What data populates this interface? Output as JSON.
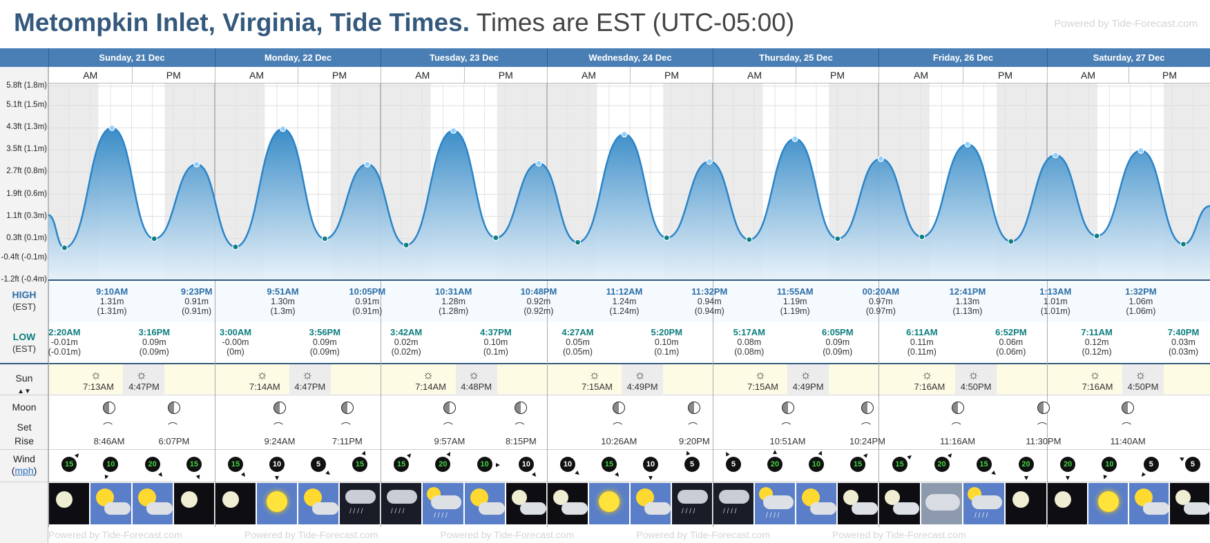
{
  "header": {
    "title_strong": "Metompkin Inlet, Virginia, Tide Times.",
    "title_light": "Times are EST (UTC-05:00)",
    "powered_by": "Powered by Tide-Forecast.com"
  },
  "axis": {
    "labels": [
      {
        "text": "5.8ft (1.8m)",
        "ft": 5.8
      },
      {
        "text": "5.1ft (1.5m)",
        "ft": 5.1
      },
      {
        "text": "4.3ft (1.3m)",
        "ft": 4.3
      },
      {
        "text": "3.5ft (1.1m)",
        "ft": 3.5
      },
      {
        "text": "2.7ft (0.8m)",
        "ft": 2.7
      },
      {
        "text": "1.9ft (0.6m)",
        "ft": 1.9
      },
      {
        "text": "1.1ft (0.3m)",
        "ft": 1.1
      },
      {
        "text": "0.3ft (0.1m)",
        "ft": 0.3
      },
      {
        "text": "-0.4ft (-0.1m)",
        "ft": -0.4
      },
      {
        "text": "-1.2ft (-0.4m)",
        "ft": -1.2
      }
    ]
  },
  "row_labels": {
    "high": "HIGH",
    "high_sub": "(EST)",
    "low": "LOW",
    "low_sub": "(EST)",
    "sun": "Sun",
    "moon": "Moon",
    "set": "Set",
    "rise": "Rise",
    "wind": "Wind",
    "wind_unit": "mph"
  },
  "days": [
    {
      "name": "Sunday, 21 Dec"
    },
    {
      "name": "Monday, 22 Dec"
    },
    {
      "name": "Tuesday, 23 Dec"
    },
    {
      "name": "Wednesday, 24 Dec"
    },
    {
      "name": "Thursday, 25 Dec"
    },
    {
      "name": "Friday, 26 Dec"
    },
    {
      "name": "Saturday, 27 Dec"
    }
  ],
  "ampm": {
    "am": "AM",
    "pm": "PM"
  },
  "chart_data": {
    "type": "area",
    "ylabel": "",
    "xlabel": "",
    "y_unit": "m",
    "series": [
      {
        "points": [
          {
            "day": "Sunday, 21 Dec",
            "time": "2:20AM",
            "type": "low",
            "m": -0.01
          },
          {
            "day": "Sunday, 21 Dec",
            "time": "9:10AM",
            "type": "high",
            "m": 1.31
          },
          {
            "day": "Sunday, 21 Dec",
            "time": "3:16PM",
            "type": "low",
            "m": 0.09
          },
          {
            "day": "Sunday, 21 Dec",
            "time": "9:23PM",
            "type": "high",
            "m": 0.91
          },
          {
            "day": "Monday, 22 Dec",
            "time": "3:00AM",
            "type": "low",
            "m": 0.0
          },
          {
            "day": "Monday, 22 Dec",
            "time": "9:51AM",
            "type": "high",
            "m": 1.3
          },
          {
            "day": "Monday, 22 Dec",
            "time": "3:56PM",
            "type": "low",
            "m": 0.09
          },
          {
            "day": "Monday, 22 Dec",
            "time": "10:05PM",
            "type": "high",
            "m": 0.91
          },
          {
            "day": "Tuesday, 23 Dec",
            "time": "3:42AM",
            "type": "low",
            "m": 0.02
          },
          {
            "day": "Tuesday, 23 Dec",
            "time": "10:31AM",
            "type": "high",
            "m": 1.28
          },
          {
            "day": "Tuesday, 23 Dec",
            "time": "4:37PM",
            "type": "low",
            "m": 0.1
          },
          {
            "day": "Tuesday, 23 Dec",
            "time": "10:48PM",
            "type": "high",
            "m": 0.92
          },
          {
            "day": "Wednesday, 24 Dec",
            "time": "4:27AM",
            "type": "low",
            "m": 0.05
          },
          {
            "day": "Wednesday, 24 Dec",
            "time": "11:12AM",
            "type": "high",
            "m": 1.24
          },
          {
            "day": "Wednesday, 24 Dec",
            "time": "5:20PM",
            "type": "low",
            "m": 0.1
          },
          {
            "day": "Wednesday, 24 Dec",
            "time": "11:32PM",
            "type": "high",
            "m": 0.94
          },
          {
            "day": "Thursday, 25 Dec",
            "time": "5:17AM",
            "type": "low",
            "m": 0.08
          },
          {
            "day": "Thursday, 25 Dec",
            "time": "11:55AM",
            "type": "high",
            "m": 1.19
          },
          {
            "day": "Thursday, 25 Dec",
            "time": "6:05PM",
            "type": "low",
            "m": 0.09
          },
          {
            "day": "Friday, 26 Dec",
            "time": "00:20AM",
            "type": "high",
            "m": 0.97
          },
          {
            "day": "Friday, 26 Dec",
            "time": "6:11AM",
            "type": "low",
            "m": 0.11
          },
          {
            "day": "Friday, 26 Dec",
            "time": "12:41PM",
            "type": "high",
            "m": 1.13
          },
          {
            "day": "Friday, 26 Dec",
            "time": "6:52PM",
            "type": "low",
            "m": 0.06
          },
          {
            "day": "Saturday, 27 Dec",
            "time": "1:13AM",
            "type": "high",
            "m": 1.01
          },
          {
            "day": "Saturday, 27 Dec",
            "time": "7:11AM",
            "type": "low",
            "m": 0.12
          },
          {
            "day": "Saturday, 27 Dec",
            "time": "1:32PM",
            "type": "high",
            "m": 1.06
          },
          {
            "day": "Saturday, 27 Dec",
            "time": "7:40PM",
            "type": "low",
            "m": 0.03
          }
        ]
      }
    ],
    "colors": {
      "line": "#2a84c8",
      "fill_top": "#2f86c4",
      "fill_bottom": "#e6f1fa",
      "night": "#ebebeb",
      "day": "#ffffff"
    }
  },
  "highs": [
    {
      "day": 0,
      "time": "9:10AM",
      "m": "1.31m",
      "m2": "(1.31m)",
      "hour": 9.17
    },
    {
      "day": 0,
      "time": "9:23PM",
      "m": "0.91m",
      "m2": "(0.91m)",
      "hour": 21.38
    },
    {
      "day": 1,
      "time": "9:51AM",
      "m": "1.30m",
      "m2": "(1.3m)",
      "hour": 9.85
    },
    {
      "day": 1,
      "time": "10:05PM",
      "m": "0.91m",
      "m2": "(0.91m)",
      "hour": 22.08
    },
    {
      "day": 2,
      "time": "10:31AM",
      "m": "1.28m",
      "m2": "(1.28m)",
      "hour": 10.52
    },
    {
      "day": 2,
      "time": "10:48PM",
      "m": "0.92m",
      "m2": "(0.92m)",
      "hour": 22.8
    },
    {
      "day": 3,
      "time": "11:12AM",
      "m": "1.24m",
      "m2": "(1.24m)",
      "hour": 11.2
    },
    {
      "day": 3,
      "time": "11:32PM",
      "m": "0.94m",
      "m2": "(0.94m)",
      "hour": 23.53
    },
    {
      "day": 4,
      "time": "11:55AM",
      "m": "1.19m",
      "m2": "(1.19m)",
      "hour": 11.92
    },
    {
      "day": 5,
      "time": "00:20AM",
      "m": "0.97m",
      "m2": "(0.97m)",
      "hour": 0.33
    },
    {
      "day": 5,
      "time": "12:41PM",
      "m": "1.13m",
      "m2": "(1.13m)",
      "hour": 12.68
    },
    {
      "day": 6,
      "time": "1:13AM",
      "m": "1.01m",
      "m2": "(1.01m)",
      "hour": 1.22
    },
    {
      "day": 6,
      "time": "1:32PM",
      "m": "1.06m",
      "m2": "(1.06m)",
      "hour": 13.53
    }
  ],
  "lows": [
    {
      "day": 0,
      "time": "2:20AM",
      "m": "-0.01m",
      "m2": "(-0.01m)",
      "hour": 2.33
    },
    {
      "day": 0,
      "time": "3:16PM",
      "m": "0.09m",
      "m2": "(0.09m)",
      "hour": 15.27
    },
    {
      "day": 1,
      "time": "3:00AM",
      "m": "-0.00m",
      "m2": "(0m)",
      "hour": 3.0
    },
    {
      "day": 1,
      "time": "3:56PM",
      "m": "0.09m",
      "m2": "(0.09m)",
      "hour": 15.93
    },
    {
      "day": 2,
      "time": "3:42AM",
      "m": "0.02m",
      "m2": "(0.02m)",
      "hour": 3.7
    },
    {
      "day": 2,
      "time": "4:37PM",
      "m": "0.10m",
      "m2": "(0.1m)",
      "hour": 16.62
    },
    {
      "day": 3,
      "time": "4:27AM",
      "m": "0.05m",
      "m2": "(0.05m)",
      "hour": 4.45
    },
    {
      "day": 3,
      "time": "5:20PM",
      "m": "0.10m",
      "m2": "(0.1m)",
      "hour": 17.33
    },
    {
      "day": 4,
      "time": "5:17AM",
      "m": "0.08m",
      "m2": "(0.08m)",
      "hour": 5.28
    },
    {
      "day": 4,
      "time": "6:05PM",
      "m": "0.09m",
      "m2": "(0.09m)",
      "hour": 18.08
    },
    {
      "day": 5,
      "time": "6:11AM",
      "m": "0.11m",
      "m2": "(0.11m)",
      "hour": 6.18
    },
    {
      "day": 5,
      "time": "6:52PM",
      "m": "0.06m",
      "m2": "(0.06m)",
      "hour": 18.87
    },
    {
      "day": 6,
      "time": "7:11AM",
      "m": "0.12m",
      "m2": "(0.12m)",
      "hour": 7.18
    },
    {
      "day": 6,
      "time": "7:40PM",
      "m": "0.03m",
      "m2": "(0.03m)",
      "hour": 19.67
    }
  ],
  "sun": [
    {
      "rise": "7:13AM",
      "set": "4:47PM",
      "rise_h": 7.22,
      "set_h": 16.78
    },
    {
      "rise": "7:14AM",
      "set": "4:47PM",
      "rise_h": 7.23,
      "set_h": 16.78
    },
    {
      "rise": "7:14AM",
      "set": "4:48PM",
      "rise_h": 7.23,
      "set_h": 16.8
    },
    {
      "rise": "7:15AM",
      "set": "4:49PM",
      "rise_h": 7.25,
      "set_h": 16.82
    },
    {
      "rise": "7:15AM",
      "set": "4:49PM",
      "rise_h": 7.25,
      "set_h": 16.82
    },
    {
      "rise": "7:16AM",
      "set": "4:50PM",
      "rise_h": 7.27,
      "set_h": 16.83
    },
    {
      "rise": "7:16AM",
      "set": "4:50PM",
      "rise_h": 7.27,
      "set_h": 16.83
    }
  ],
  "moon": [
    {
      "day": 0,
      "time": "8:46AM",
      "hour": 8.77
    },
    {
      "day": 0,
      "time": "6:07PM",
      "hour": 18.12
    },
    {
      "day": 1,
      "time": "9:24AM",
      "hour": 9.4
    },
    {
      "day": 1,
      "time": "7:11PM",
      "hour": 19.18
    },
    {
      "day": 2,
      "time": "9:57AM",
      "hour": 9.95
    },
    {
      "day": 2,
      "time": "8:15PM",
      "hour": 20.25
    },
    {
      "day": 3,
      "time": "10:26AM",
      "hour": 10.43
    },
    {
      "day": 3,
      "time": "9:20PM",
      "hour": 21.33
    },
    {
      "day": 4,
      "time": "10:51AM",
      "hour": 10.85
    },
    {
      "day": 4,
      "time": "10:24PM",
      "hour": 22.4
    },
    {
      "day": 5,
      "time": "11:16AM",
      "hour": 11.27
    },
    {
      "day": 5,
      "time": "11:30PM",
      "hour": 23.5
    },
    {
      "day": 6,
      "time": "11:40AM",
      "hour": 11.67
    }
  ],
  "wind": [
    {
      "speed": "15",
      "green": true,
      "dir": 40
    },
    {
      "speed": "10",
      "green": true,
      "dir": 200
    },
    {
      "speed": "20",
      "green": true,
      "dir": 140
    },
    {
      "speed": "15",
      "green": true,
      "dir": 160
    },
    {
      "speed": "15",
      "green": true,
      "dir": 140
    },
    {
      "speed": "10",
      "green": false,
      "dir": 180
    },
    {
      "speed": "5",
      "green": false,
      "dir": 130
    },
    {
      "speed": "15",
      "green": true,
      "dir": 20
    },
    {
      "speed": "15",
      "green": true,
      "dir": 40
    },
    {
      "speed": "20",
      "green": true,
      "dir": 30
    },
    {
      "speed": "10",
      "green": true,
      "dir": 90
    },
    {
      "speed": "10",
      "green": false,
      "dir": 140
    },
    {
      "speed": "10",
      "green": false,
      "dir": 130
    },
    {
      "speed": "15",
      "green": true,
      "dir": 140
    },
    {
      "speed": "10",
      "green": false,
      "dir": 180
    },
    {
      "speed": "5",
      "green": false,
      "dir": 340
    },
    {
      "speed": "5",
      "green": false,
      "dir": 330
    },
    {
      "speed": "20",
      "green": true,
      "dir": 0
    },
    {
      "speed": "10",
      "green": true,
      "dir": 20
    },
    {
      "speed": "15",
      "green": true,
      "dir": 40
    },
    {
      "speed": "15",
      "green": true,
      "dir": 50
    },
    {
      "speed": "20",
      "green": true,
      "dir": 40
    },
    {
      "speed": "15",
      "green": true,
      "dir": 130
    },
    {
      "speed": "20",
      "green": true,
      "dir": 180
    },
    {
      "speed": "20",
      "green": true,
      "dir": 180
    },
    {
      "speed": "10",
      "green": true,
      "dir": 200
    },
    {
      "speed": "5",
      "green": false,
      "dir": 220
    },
    {
      "speed": "5",
      "green": false,
      "dir": 300
    }
  ],
  "weather": [
    "clear-night-icon",
    "partly-cloudy-day-icon",
    "partly-cloudy-day-icon",
    "clear-night-icon",
    "clear-night-icon",
    "sunny-icon",
    "partly-cloudy-day-icon",
    "rain-night-icon",
    "rain-night-icon",
    "rain-day-icon",
    "partly-cloudy-day-icon",
    "partly-cloudy-night-icon",
    "partly-cloudy-night-icon",
    "sunny-icon",
    "partly-cloudy-day-icon",
    "rain-night-icon",
    "rain-night-icon",
    "rain-day-icon",
    "partly-cloudy-day-icon",
    "partly-cloudy-night-icon",
    "partly-cloudy-night-icon",
    "cloudy-day-icon",
    "rain-day-icon",
    "clear-night-icon",
    "clear-night-icon",
    "sunny-icon",
    "partly-cloudy-day-icon",
    "partly-cloudy-night-icon"
  ]
}
